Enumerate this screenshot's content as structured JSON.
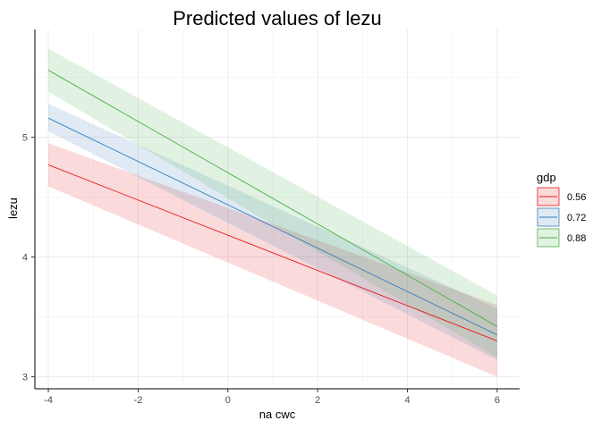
{
  "chart_data": {
    "type": "line",
    "title": "Predicted values of lezu",
    "xlabel": "na cwc",
    "ylabel": "lezu",
    "xlim": [
      -4.3,
      6.5
    ],
    "ylim": [
      2.9,
      5.9
    ],
    "x_ticks": [
      -4,
      -2,
      0,
      2,
      4,
      6
    ],
    "x_tick_labels": [
      "-4",
      "-2",
      "0",
      "2",
      "4",
      "6"
    ],
    "y_ticks": [
      3,
      4,
      5
    ],
    "y_tick_labels": [
      "3",
      "4",
      "5"
    ],
    "grid": true,
    "legend": {
      "title": "gdp",
      "position": "right"
    },
    "series": [
      {
        "name": "0.56",
        "color": "#e41a1c",
        "x": [
          -4,
          6
        ],
        "y": [
          4.77,
          3.3
        ],
        "lower": [
          4.59,
          3.0
        ],
        "upper": [
          4.95,
          3.6
        ]
      },
      {
        "name": "0.72",
        "color": "#377eb8",
        "x": [
          -4,
          6
        ],
        "y": [
          5.16,
          3.35
        ],
        "lower": [
          5.05,
          3.14
        ],
        "upper": [
          5.28,
          3.57
        ]
      },
      {
        "name": "0.88",
        "color": "#4daf4a",
        "x": [
          -4,
          6
        ],
        "y": [
          5.56,
          3.42
        ],
        "lower": [
          5.38,
          3.16
        ],
        "upper": [
          5.74,
          3.68
        ]
      }
    ]
  }
}
